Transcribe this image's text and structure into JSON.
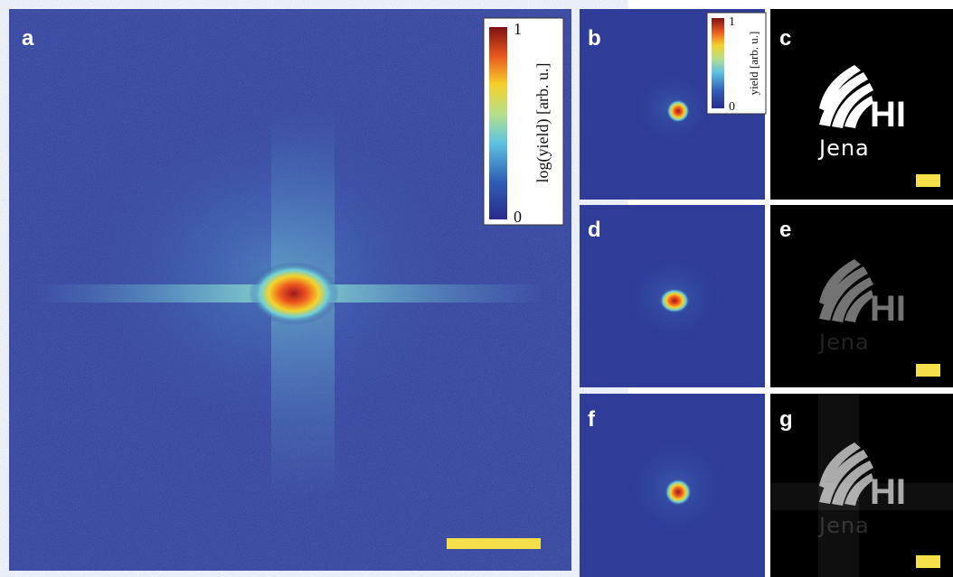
{
  "panels": [
    {
      "label": "a"
    },
    {
      "label": "b"
    },
    {
      "label": "c"
    },
    {
      "label": "d"
    },
    {
      "label": "e"
    },
    {
      "label": "f"
    },
    {
      "label": "g"
    }
  ],
  "colorbars": [
    {
      "label": "log(yield) [arb. u.]",
      "max": "1",
      "min": "0"
    },
    {
      "label": "yield [arb. u.]",
      "max": "1",
      "min": "0"
    }
  ],
  "logo": {
    "mark": "HI",
    "place": "Jena"
  }
}
